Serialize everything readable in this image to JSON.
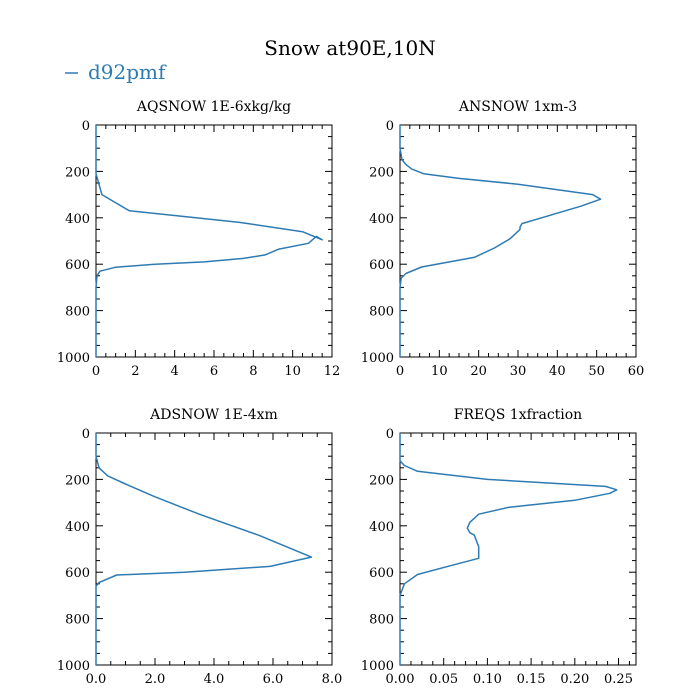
{
  "title": "Snow at90E,10N",
  "legend": {
    "label": "d92pmf",
    "color": "#2e7bb4"
  },
  "chart_data": [
    {
      "type": "line",
      "title": "AQSNOW  1E-6xkg/kg",
      "series": [
        {
          "name": "d92pmf",
          "color": "#2e7bb4",
          "x": [
            0,
            0,
            0,
            0,
            0.05,
            0.2,
            1.0,
            3.0,
            5.5,
            7.5,
            8.6,
            9.3,
            10.8,
            11.2,
            11.5,
            10.5,
            7.3,
            1.7,
            0.3,
            0,
            0,
            0,
            0,
            0
          ],
          "y": [
            1000,
            900,
            800,
            700,
            650,
            630,
            613,
            600,
            590,
            575,
            560,
            535,
            510,
            480,
            495,
            460,
            420,
            370,
            300,
            210,
            180,
            150,
            100,
            0
          ]
        }
      ],
      "xlim": [
        0,
        12
      ],
      "ylim": [
        1000,
        0
      ],
      "xticks": [
        0,
        2,
        4,
        6,
        8,
        10,
        12
      ],
      "xtick_labels": [
        "0",
        "2",
        "4",
        "6",
        "8",
        "10",
        "12"
      ],
      "yticks": [
        0,
        200,
        400,
        600,
        800,
        1000
      ],
      "ytick_labels": [
        "0",
        "200",
        "400",
        "600",
        "800",
        "1000"
      ]
    },
    {
      "type": "line",
      "title": "ANSNOW  1xm-3",
      "series": [
        {
          "name": "d92pmf",
          "color": "#2e7bb4",
          "x": [
            0,
            0,
            0,
            0.3,
            1.5,
            5.5,
            19,
            24,
            28,
            30.5,
            30.5,
            31,
            36,
            42,
            46,
            51,
            49,
            30,
            15,
            6,
            3,
            1.5,
            0.5,
            0,
            0
          ],
          "y": [
            1000,
            800,
            700,
            660,
            640,
            612,
            570,
            530,
            490,
            450,
            440,
            425,
            400,
            370,
            350,
            320,
            300,
            255,
            230,
            210,
            190,
            170,
            150,
            100,
            0
          ]
        }
      ],
      "xlim": [
        0,
        60
      ],
      "ylim": [
        1000,
        0
      ],
      "xticks": [
        0,
        10,
        20,
        30,
        40,
        50,
        60
      ],
      "xtick_labels": [
        "0",
        "10",
        "20",
        "30",
        "40",
        "50",
        "60"
      ],
      "yticks": [
        0,
        200,
        400,
        600,
        800,
        1000
      ],
      "ytick_labels": [
        "0",
        "200",
        "400",
        "600",
        "800",
        "1000"
      ]
    },
    {
      "type": "line",
      "title": "ADSNOW  1E-4xm",
      "series": [
        {
          "name": "d92pmf",
          "color": "#2e7bb4",
          "x": [
            0,
            0,
            0,
            0,
            0.1,
            0.7,
            3.0,
            5.9,
            7.3,
            5.5,
            3.5,
            2.0,
            1.0,
            0.4,
            0.1,
            0,
            0
          ],
          "y": [
            1000,
            800,
            700,
            660,
            645,
            612,
            600,
            575,
            535,
            440,
            350,
            275,
            220,
            185,
            150,
            100,
            0
          ]
        }
      ],
      "xlim": [
        0,
        8
      ],
      "ylim": [
        1000,
        0
      ],
      "xticks": [
        0,
        2,
        4,
        6,
        8
      ],
      "xtick_labels": [
        "0.0",
        "2.0",
        "4.0",
        "6.0",
        "8.0"
      ],
      "yticks": [
        0,
        200,
        400,
        600,
        800,
        1000
      ],
      "ytick_labels": [
        "0",
        "200",
        "400",
        "600",
        "800",
        "1000"
      ]
    },
    {
      "type": "line",
      "title": "FREQS  1xfraction",
      "series": [
        {
          "name": "d92pmf",
          "color": "#2e7bb4",
          "x": [
            0,
            0,
            0,
            0.005,
            0.02,
            0.06,
            0.09,
            0.09,
            0.087,
            0.085,
            0.08,
            0.077,
            0.08,
            0.09,
            0.125,
            0.2,
            0.24,
            0.248,
            0.235,
            0.1,
            0.02,
            0.005,
            0,
            0
          ],
          "y": [
            1000,
            800,
            700,
            650,
            610,
            570,
            540,
            490,
            460,
            440,
            430,
            410,
            385,
            350,
            320,
            290,
            260,
            245,
            230,
            200,
            165,
            140,
            120,
            0
          ]
        }
      ],
      "xlim": [
        0,
        0.27
      ],
      "ylim": [
        1000,
        0
      ],
      "xticks": [
        0,
        0.05,
        0.1,
        0.15,
        0.2,
        0.25
      ],
      "xtick_labels": [
        "0.00",
        "0.05",
        "0.10",
        "0.15",
        "0.20",
        "0.25"
      ],
      "yticks": [
        0,
        200,
        400,
        600,
        800,
        1000
      ],
      "ytick_labels": [
        "0",
        "200",
        "400",
        "600",
        "800",
        "1000"
      ]
    }
  ]
}
